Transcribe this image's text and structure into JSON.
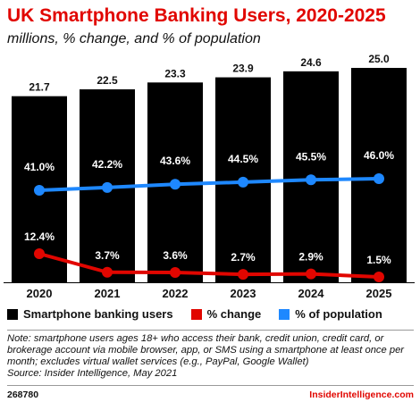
{
  "header": {
    "title": "UK Smartphone Banking Users, 2020-2025",
    "subtitle": "millions, % change, and % of population"
  },
  "chart_data": {
    "type": "bar",
    "categories": [
      "2020",
      "2021",
      "2022",
      "2023",
      "2024",
      "2025"
    ],
    "series": [
      {
        "name": "Smartphone banking users",
        "type": "bar",
        "values": [
          21.7,
          22.5,
          23.3,
          23.9,
          24.6,
          25.0
        ],
        "labels": [
          "21.7",
          "22.5",
          "23.3",
          "23.9",
          "24.6",
          "25.0"
        ],
        "color": "#000000"
      },
      {
        "name": "% change",
        "type": "line",
        "values": [
          12.4,
          3.7,
          3.6,
          2.7,
          2.9,
          1.5
        ],
        "labels": [
          "12.4%",
          "3.7%",
          "3.6%",
          "2.7%",
          "2.9%",
          "1.5%"
        ],
        "color": "#e10600"
      },
      {
        "name": "% of population",
        "type": "line",
        "values": [
          41.0,
          42.2,
          43.6,
          44.5,
          45.5,
          46.0
        ],
        "labels": [
          "41.0%",
          "42.2%",
          "43.6%",
          "44.5%",
          "45.5%",
          "46.0%"
        ],
        "color": "#1e88ff"
      }
    ],
    "legend_position": "bottom",
    "grid": false
  },
  "footer": {
    "note": "Note: smartphone users ages 18+ who access their bank, credit union, credit card, or brokerage account via mobile browser, app, or SMS using a smartphone at least once per month; excludes virtual wallet services (e.g., PayPal, Google Wallet)",
    "source": "Source: Insider Intelligence, May 2021",
    "chart_id": "268780",
    "brand": "InsiderIntelligence.com"
  }
}
